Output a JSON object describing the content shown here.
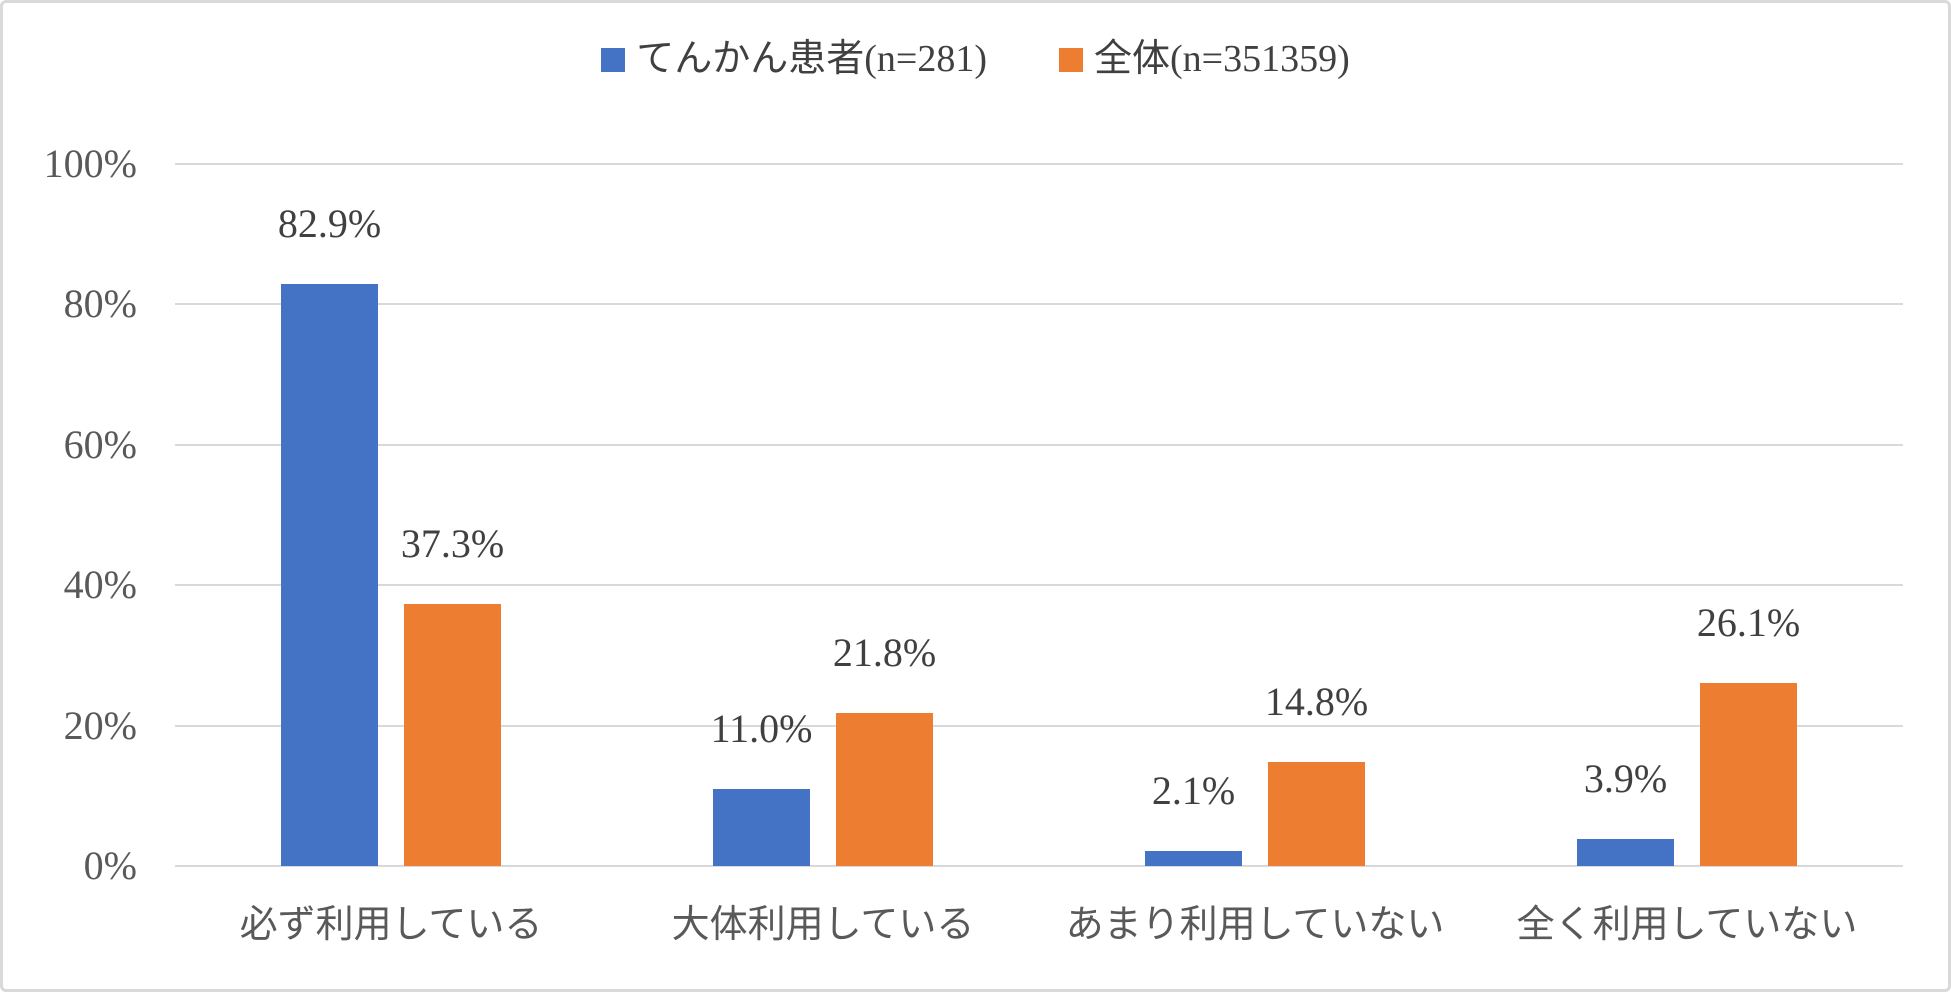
{
  "chart": {
    "background_color": "#FFFFFF",
    "frame_border_color": "#D9D9D9",
    "gridline_color": "#D9D9D9",
    "data_label_color": "#404040",
    "axis_text_color": "#595959"
  },
  "legend": {
    "items": [
      {
        "label": "てんかん患者(n=281)",
        "color": "#4472C4"
      },
      {
        "label": "全体(n=351359)",
        "color": "#ED7D31"
      }
    ]
  },
  "chart_data": {
    "type": "bar",
    "title": "",
    "xlabel": "",
    "ylabel": "",
    "categories": [
      "必ず利用している",
      "大体利用している",
      "あまり利用していない",
      "全く利用していない"
    ],
    "series": [
      {
        "name": "てんかん患者(n=281)",
        "color": "#4472C4",
        "values": [
          82.9,
          11.0,
          2.1,
          3.9
        ],
        "labels": [
          "82.9%",
          "11.0%",
          "2.1%",
          "3.9%"
        ]
      },
      {
        "name": "全体(n=351359)",
        "color": "#ED7D31",
        "values": [
          37.3,
          21.8,
          14.8,
          26.1
        ],
        "labels": [
          "37.3%",
          "21.8%",
          "14.8%",
          "26.1%"
        ]
      }
    ],
    "y_axis": {
      "min": 0,
      "max": 100,
      "step": 20,
      "tick_labels": [
        "100%",
        "80%",
        "60%",
        "40%",
        "20%",
        "0%"
      ]
    },
    "grid": true,
    "legend_position": "top",
    "data_labels": "outside-end"
  }
}
